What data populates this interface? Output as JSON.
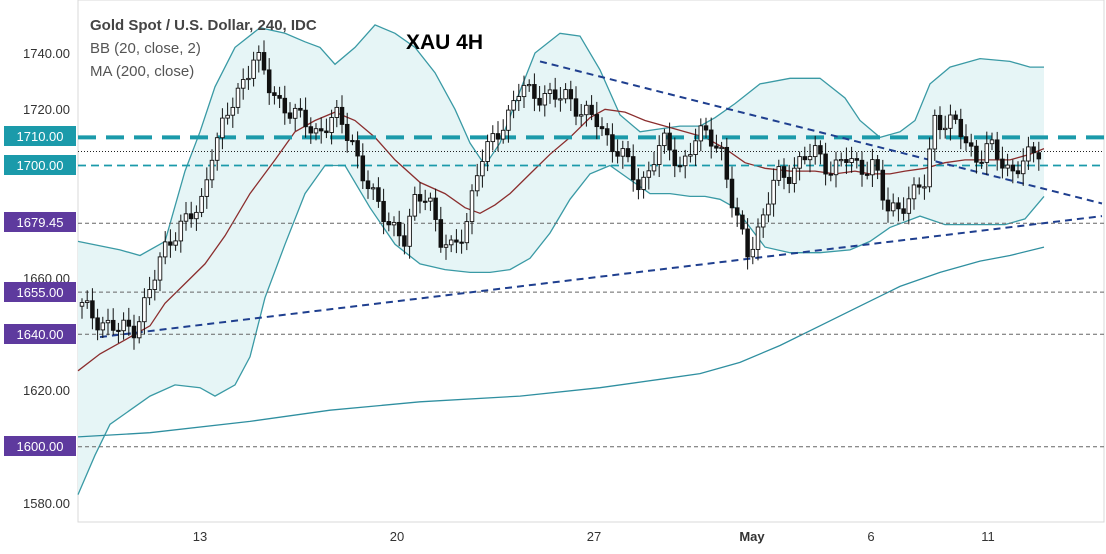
{
  "chart_data": {
    "type": "candlestick",
    "instrument": "Gold Spot / U.S. Dollar, 240, IDC",
    "indicators": [
      "BB (20, close, 2)",
      "MA (200, close)"
    ],
    "title": "XAU 4H",
    "y_ticks": [
      "1740.00",
      "1720.00",
      "1660.00",
      "1620.00",
      "1580.00"
    ],
    "x_ticks": [
      "13",
      "20",
      "27",
      "May",
      "6",
      "11"
    ],
    "ylim": [
      1577,
      1758
    ],
    "grid": false,
    "levels": [
      {
        "label": "1710.00",
        "value": 1710,
        "style": "dashed-thick",
        "box_color": "#1b9aaa"
      },
      {
        "label": "1700.00",
        "value": 1700,
        "style": "dashed-thin",
        "box_color": "#1b9aaa"
      },
      {
        "label": "1679.45",
        "value": 1679.45,
        "style": "dashed-black",
        "box_color": "#5e3a9e"
      },
      {
        "label": "1655.00",
        "value": 1655,
        "style": "dashed-black",
        "box_color": "#5e3a9e"
      },
      {
        "label": "1640.00",
        "value": 1640,
        "style": "dashed-black",
        "box_color": "#5e3a9e"
      },
      {
        "label": "1600.00",
        "value": 1600,
        "style": "dashed-black",
        "box_color": "#5e3a9e"
      }
    ],
    "colors": {
      "bb_band": "#3a9aa5",
      "bb_fill": "#e6f5f6",
      "bb_middle": "#8b2e2e",
      "ma200": "#2f8fa0",
      "trendline": "#1f3f8f",
      "teal_level": "#1b9aaa",
      "purple_box": "#5e3a9e"
    }
  }
}
